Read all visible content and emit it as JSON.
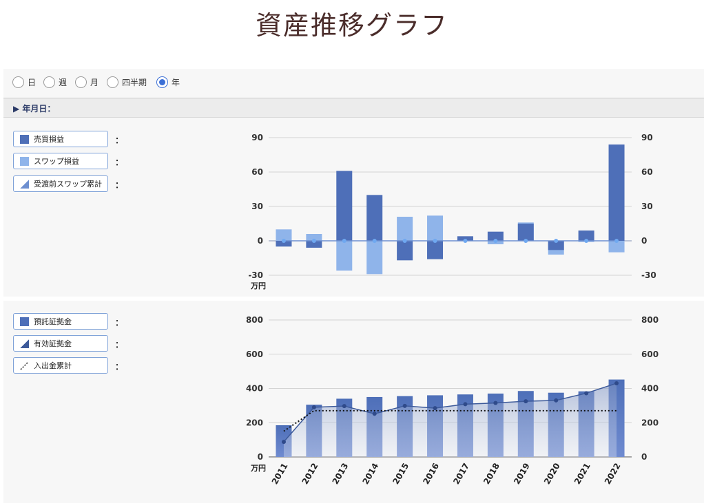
{
  "page": {
    "title": "資産推移グラフ"
  },
  "period_options": [
    {
      "label": "日",
      "selected": false
    },
    {
      "label": "週",
      "selected": false
    },
    {
      "label": "月",
      "selected": false
    },
    {
      "label": "四半期",
      "selected": false
    },
    {
      "label": "年",
      "selected": true
    }
  ],
  "date_label": "▶ 年月日：",
  "legend_top": [
    {
      "label": "売買損益",
      "value": "：",
      "color": "#4e6fb8"
    },
    {
      "label": "スワップ損益",
      "value": "：",
      "color": "#8fb4ea"
    },
    {
      "label": "受渡前スワップ累計",
      "value": "：",
      "color": "#6d8fd0"
    }
  ],
  "legend_bottom": [
    {
      "label": "預託証拠金",
      "value": "：",
      "color": "#4e6fb8"
    },
    {
      "label": "有効証拠金",
      "value": "：",
      "color": "#6d8fd0"
    },
    {
      "label": "入出金累計",
      "value": "：",
      "color": "#111111"
    }
  ],
  "chart_data": [
    {
      "type": "bar",
      "categories": [
        "2011",
        "2012",
        "2013",
        "2014",
        "2015",
        "2016",
        "2017",
        "2018",
        "2019",
        "2020",
        "2021",
        "2022"
      ],
      "series": [
        {
          "name": "売買損益",
          "values": [
            -5,
            -6,
            61,
            40,
            -17,
            -16,
            4,
            8,
            15,
            -8,
            9,
            84
          ],
          "color": "#4e6fb8"
        },
        {
          "name": "スワップ損益",
          "values": [
            10,
            6,
            -26,
            -29,
            21,
            22,
            1,
            -3,
            16,
            -12,
            -1,
            -10
          ],
          "color": "#8fb4ea"
        },
        {
          "name": "受渡前スワップ累計",
          "values": [
            0,
            0,
            0,
            0,
            0,
            0,
            0,
            0,
            0,
            0,
            0,
            0
          ],
          "color": "#6d8fd0"
        }
      ],
      "yticks": [
        90,
        60,
        30,
        0,
        -30
      ],
      "ylim": [
        -30,
        90
      ],
      "unit": "万円"
    },
    {
      "type": "bar",
      "categories": [
        "2011",
        "2012",
        "2013",
        "2014",
        "2015",
        "2016",
        "2017",
        "2018",
        "2019",
        "2020",
        "2021",
        "2022"
      ],
      "series": [
        {
          "name": "預託証拠金",
          "values": [
            185,
            305,
            340,
            350,
            355,
            360,
            365,
            370,
            385,
            375,
            383,
            452
          ],
          "color": "#4e6fb8"
        },
        {
          "name": "有効証拠金",
          "values": [
            88,
            290,
            297,
            252,
            298,
            285,
            308,
            315,
            325,
            330,
            372,
            430
          ],
          "color": "#3d5a9a"
        },
        {
          "name": "入出金累計",
          "values": [
            150,
            270,
            270,
            270,
            270,
            270,
            270,
            270,
            270,
            270,
            270,
            270
          ],
          "color": "#111111"
        }
      ],
      "yticks": [
        800,
        600,
        400,
        200,
        0
      ],
      "ylim": [
        0,
        800
      ],
      "unit": "万円"
    }
  ]
}
